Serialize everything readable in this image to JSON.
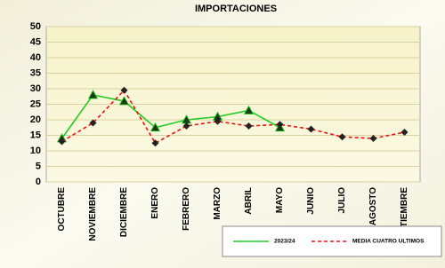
{
  "chart_data": {
    "type": "line",
    "title": "IMPORTACIONES",
    "categories": [
      "OCTUBRE",
      "NOVIEMBRE",
      "DICIEMBRE",
      "ENERO",
      "FEBRERO",
      "MARZO",
      "ABRIL",
      "MAYO",
      "JUNIO",
      "JULIO",
      "AGOSTO",
      "SEPTIEMBRE"
    ],
    "series": [
      {
        "name": "2023/24",
        "color": "#22cc22",
        "values": [
          14,
          28,
          26,
          17.5,
          20,
          21,
          23,
          17.5,
          null,
          null,
          null,
          null
        ]
      },
      {
        "name": "MEDIA CUATRO ULTIMOS",
        "color": "#ee1111",
        "values": [
          13,
          19,
          29.5,
          12.5,
          18,
          19.5,
          18,
          18.5,
          17,
          14.5,
          14,
          16
        ]
      }
    ],
    "ylim": [
      0,
      50
    ],
    "yticks": [
      0,
      5,
      10,
      15,
      20,
      25,
      30,
      35,
      40,
      45,
      50
    ],
    "grid": true,
    "legend": "bottom-right"
  }
}
